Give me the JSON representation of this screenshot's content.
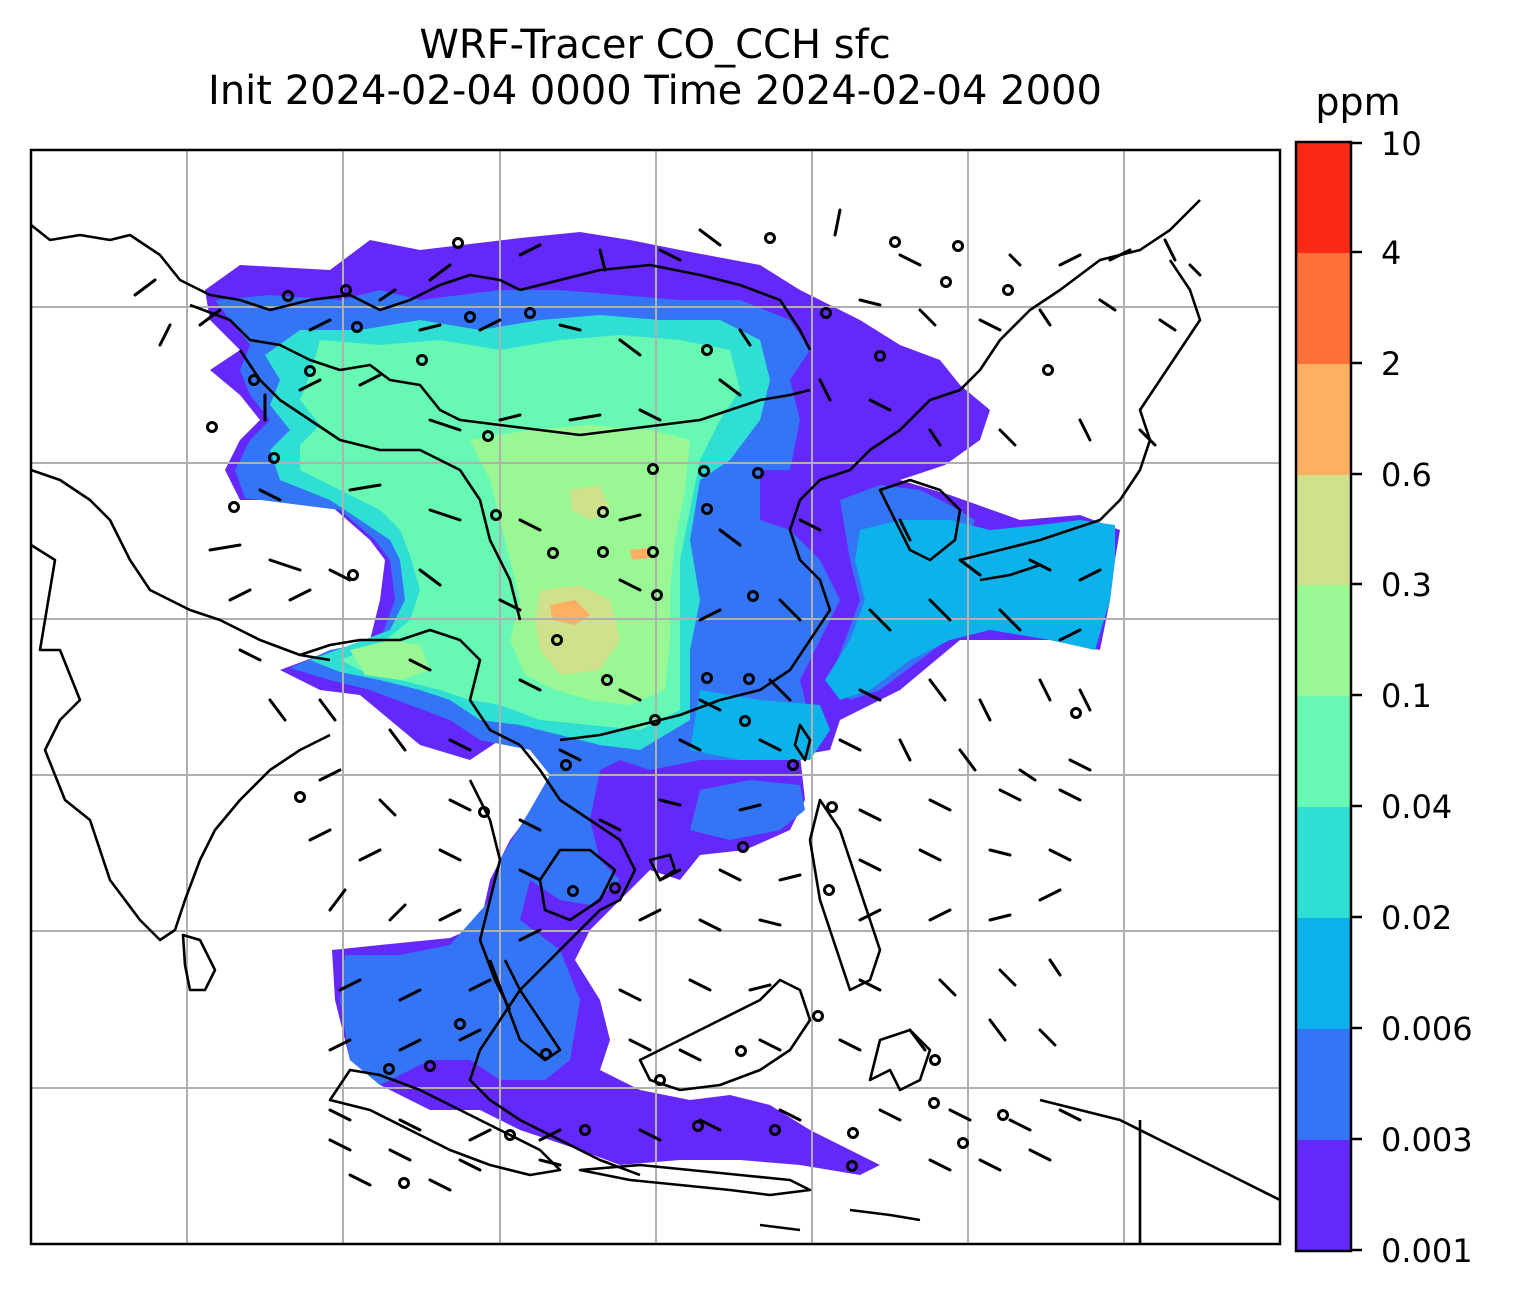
{
  "title": {
    "line1": "WRF-Tracer CO_CCH sfc",
    "line2": "Init 2024-02-04 0000 Time 2024-02-04 2000"
  },
  "colorbar": {
    "unit": "ppm",
    "levels": [
      "0.001",
      "0.003",
      "0.006",
      "0.02",
      "0.04",
      "0.1",
      "0.3",
      "0.6",
      "2",
      "4",
      "10"
    ],
    "colors": [
      "#6429fa",
      "#3375f4",
      "#0cb2e9",
      "#30dfd3",
      "#67f8b3",
      "#99f794",
      "#cfe18a",
      "#feaf62",
      "#fd7039",
      "#fb2a17"
    ]
  },
  "map": {
    "gridlines": true,
    "features": [
      "coastlines",
      "country-borders",
      "wind-barbs",
      "tracer-concentration-fill"
    ]
  }
}
